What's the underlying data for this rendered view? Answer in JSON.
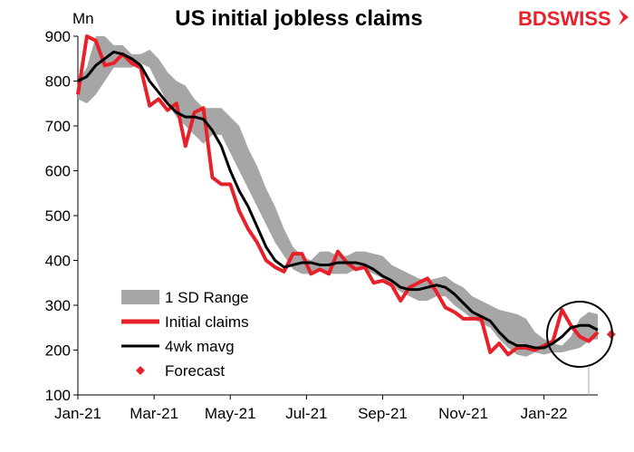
{
  "chart_data": {
    "type": "line",
    "title": "US initial jobless claims",
    "y_unit_label": "Mn",
    "ylim": [
      100,
      900
    ],
    "y_ticks": [
      100,
      200,
      300,
      400,
      500,
      600,
      700,
      800,
      900
    ],
    "x_ticks": [
      "Jan-21",
      "Mar-21",
      "May-21",
      "Jul-21",
      "Sep-21",
      "Nov-21",
      "Jan-22"
    ],
    "x_tick_index": [
      0,
      8.5,
      17,
      25.5,
      34,
      43,
      52
    ],
    "x_range": [
      0,
      58
    ],
    "legend_position": "bottom-left",
    "series": [
      {
        "name": "1 SD Range",
        "kind": "band",
        "color": "#a6a6a6",
        "upper": [
          800,
          830,
          900,
          900,
          880,
          880,
          860,
          860,
          870,
          850,
          820,
          800,
          790,
          760,
          740,
          740,
          740,
          720,
          700,
          650,
          610,
          560,
          520,
          470,
          430,
          410,
          400,
          420,
          420,
          410,
          410,
          420,
          420,
          415,
          410,
          390,
          380,
          370,
          360,
          355,
          360,
          365,
          350,
          340,
          320,
          310,
          300,
          290,
          285,
          280,
          270,
          240,
          225,
          215,
          210,
          230,
          270,
          285,
          280
        ],
        "lower": [
          760,
          750,
          770,
          800,
          830,
          830,
          830,
          840,
          830,
          790,
          750,
          720,
          700,
          680,
          660,
          680,
          680,
          640,
          600,
          560,
          520,
          480,
          440,
          410,
          380,
          370,
          370,
          380,
          370,
          370,
          370,
          380,
          380,
          370,
          360,
          345,
          330,
          320,
          310,
          310,
          320,
          320,
          300,
          285,
          270,
          260,
          250,
          225,
          205,
          190,
          185,
          195,
          190,
          195,
          195,
          200,
          205,
          220,
          225
        ]
      },
      {
        "name": "Initial claims",
        "kind": "line",
        "color": "#e8202a",
        "values": [
          770,
          900,
          890,
          835,
          840,
          860,
          840,
          830,
          745,
          760,
          735,
          750,
          655,
          730,
          740,
          585,
          570,
          570,
          510,
          470,
          440,
          400,
          385,
          375,
          415,
          415,
          370,
          380,
          370,
          420,
          395,
          380,
          385,
          350,
          355,
          345,
          310,
          340,
          350,
          360,
          330,
          295,
          285,
          270,
          270,
          270,
          195,
          215,
          190,
          205,
          205,
          200,
          210,
          220,
          290,
          255,
          230,
          220,
          240
        ]
      },
      {
        "name": "4wk mavg",
        "kind": "line",
        "color": "#000000",
        "values": [
          800,
          810,
          835,
          850,
          865,
          860,
          850,
          835,
          800,
          775,
          750,
          730,
          720,
          720,
          715,
          690,
          655,
          600,
          555,
          520,
          475,
          430,
          400,
          385,
          390,
          395,
          395,
          390,
          390,
          395,
          395,
          395,
          390,
          380,
          365,
          355,
          340,
          335,
          335,
          340,
          345,
          340,
          325,
          305,
          285,
          275,
          265,
          240,
          220,
          210,
          210,
          205,
          205,
          215,
          230,
          250,
          255,
          255,
          245
        ]
      },
      {
        "name": "Forecast",
        "kind": "point",
        "color": "#e8202a",
        "x_index": 59.5,
        "value": 235
      }
    ]
  },
  "logo": {
    "text": "BDSWISS",
    "color": "#e8202a",
    "arrow_icon": "chevron-right-icon"
  },
  "colors": {
    "claims": "#e8202a",
    "mavg": "#000000",
    "band": "#a6a6a6",
    "brand": "#e8202a"
  }
}
